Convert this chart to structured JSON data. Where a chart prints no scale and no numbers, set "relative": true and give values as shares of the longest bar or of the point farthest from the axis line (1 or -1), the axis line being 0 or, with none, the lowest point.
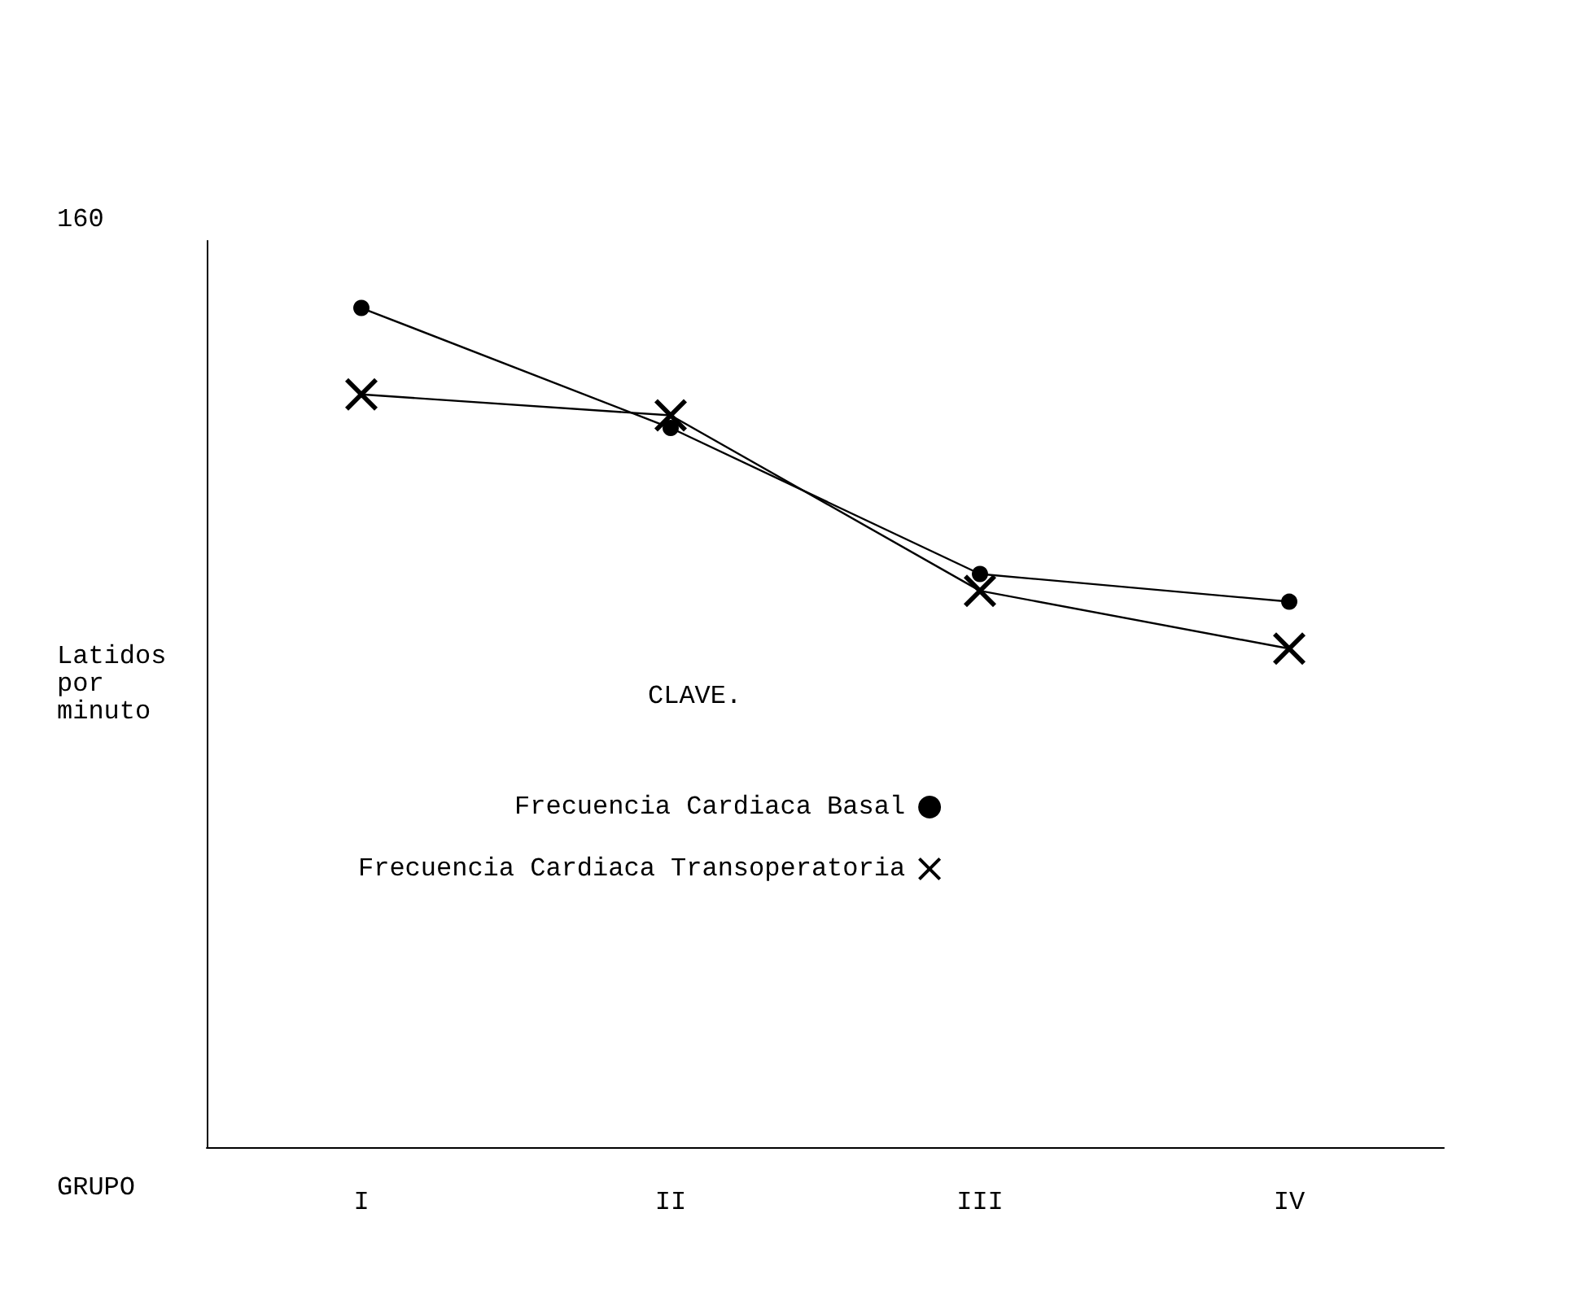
{
  "chart_data": {
    "type": "line",
    "relative": true,
    "xlabel": "GRUPO",
    "ylabel": "Latidos por minuto",
    "legend_title": "CLAVE.",
    "legend": "left",
    "grid": false,
    "annotations": [
      "160"
    ],
    "categories": [
      "I",
      "II",
      "III",
      "IV"
    ],
    "series": [
      {
        "name": "Frecuencia Cardiaca Basal",
        "color": "#000000",
        "marker": "circle",
        "values": [
          1,
          0.857,
          0.683,
          0.65
        ]
      },
      {
        "name": "Frecuencia Cardiaca Transoperatoria",
        "color": "#000000",
        "marker": "cross",
        "values": [
          0.897,
          0.872,
          0.663,
          0.594
        ]
      }
    ]
  }
}
